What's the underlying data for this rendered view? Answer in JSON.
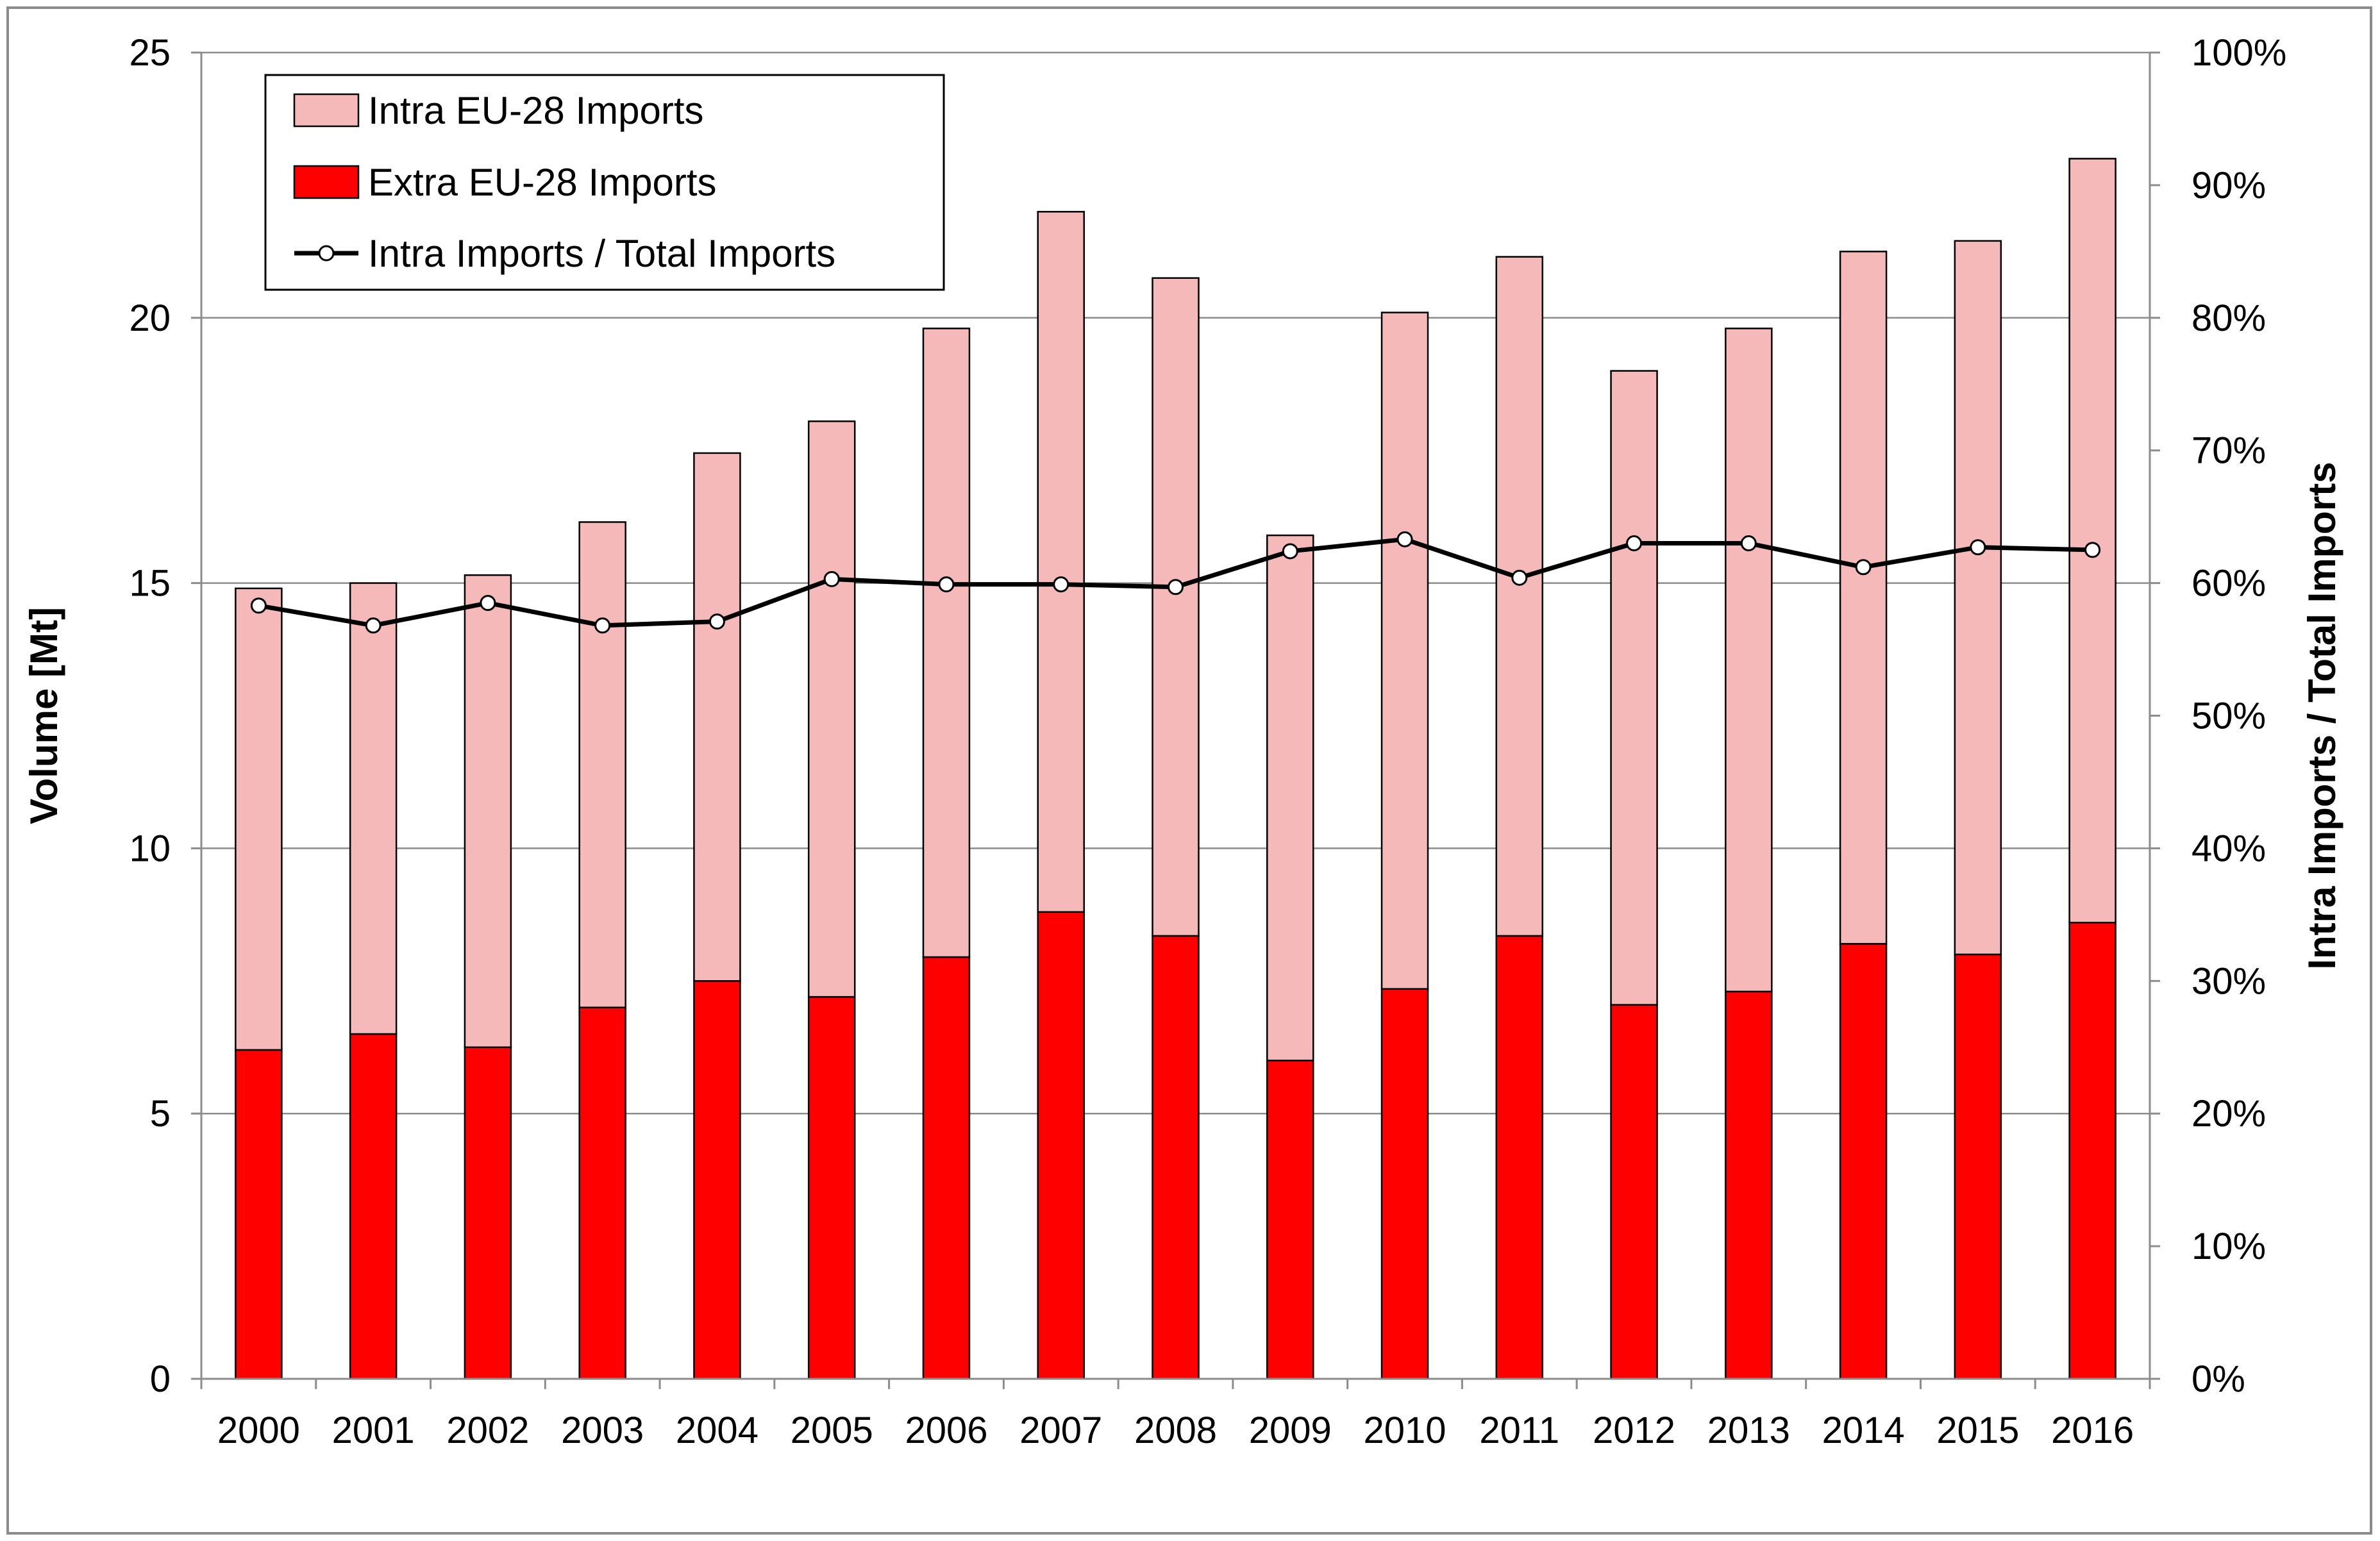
{
  "chart_data": {
    "type": "bar",
    "stacked": true,
    "title": "",
    "categories": [
      "2000",
      "2001",
      "2002",
      "2003",
      "2004",
      "2005",
      "2006",
      "2007",
      "2008",
      "2009",
      "2010",
      "2011",
      "2012",
      "2013",
      "2014",
      "2015",
      "2016"
    ],
    "series": [
      {
        "name": "Extra EU-28 Imports",
        "type": "bar",
        "axis": "left",
        "color": "#ff0000",
        "values": [
          6.2,
          6.5,
          6.25,
          7.0,
          7.5,
          7.2,
          7.95,
          8.8,
          8.35,
          6.0,
          7.35,
          8.35,
          7.05,
          7.3,
          8.2,
          8.0,
          8.6
        ]
      },
      {
        "name": "Intra EU-28 Imports",
        "type": "bar",
        "axis": "left",
        "color": "#f4b9b8",
        "values": [
          8.7,
          8.5,
          8.9,
          9.15,
          9.95,
          10.85,
          11.85,
          13.2,
          12.4,
          9.9,
          12.75,
          12.8,
          11.95,
          12.5,
          13.05,
          13.45,
          14.4
        ]
      },
      {
        "name": "Intra Imports / Total Imports",
        "type": "line",
        "axis": "right",
        "color": "#000000",
        "values": [
          0.583,
          0.568,
          0.585,
          0.568,
          0.571,
          0.603,
          0.599,
          0.599,
          0.597,
          0.624,
          0.633,
          0.604,
          0.63,
          0.63,
          0.612,
          0.627,
          0.625
        ]
      }
    ],
    "legend_order": [
      "Intra EU-28 Imports",
      "Extra EU-28 Imports",
      "Intra Imports / Total Imports"
    ],
    "legend_position": "top-left",
    "ylabel": "Volume [Mt]",
    "ylim": [
      0,
      25
    ],
    "yticks": [
      0,
      5,
      10,
      15,
      20,
      25
    ],
    "ytick_labels": [
      "0",
      "5",
      "10",
      "15",
      "20",
      "25"
    ],
    "y2label": "Intra Imports / Total Imports",
    "y2lim": [
      0,
      1
    ],
    "y2ticks": [
      0,
      0.1,
      0.2,
      0.3,
      0.4,
      0.5,
      0.6,
      0.7,
      0.8,
      0.9,
      1.0
    ],
    "y2tick_labels": [
      "0%",
      "10%",
      "20%",
      "30%",
      "40%",
      "50%",
      "60%",
      "70%",
      "80%",
      "90%",
      "100%"
    ],
    "grid": "horizontal",
    "xlabel": ""
  }
}
